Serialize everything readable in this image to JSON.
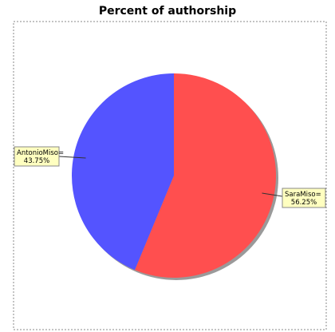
{
  "chart_data": {
    "type": "pie",
    "title": "Percent of authorship",
    "slices": [
      {
        "label": "SaraMiso",
        "value": 56.25,
        "display": "56.25%",
        "color": "#ff4f4f"
      },
      {
        "label": "AntonioMiso",
        "value": 43.75,
        "display": "43.75%",
        "color": "#5454ff"
      }
    ],
    "start": "12 o'clock",
    "direction": "clockwise",
    "legend": "none",
    "label_box_color": "#ffffc0"
  }
}
